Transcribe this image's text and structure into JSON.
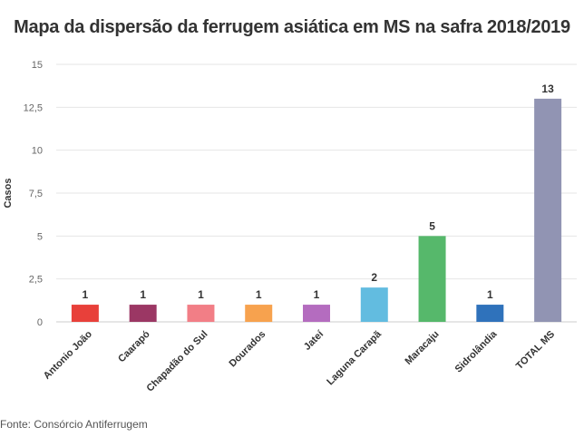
{
  "chart_data": {
    "type": "bar",
    "title": "Mapa da dispersão da ferrugem asiática em MS na safra 2018/2019",
    "ylabel": "Casos",
    "xlabel": "",
    "ylim": [
      0,
      15
    ],
    "yticks": [
      0,
      2.5,
      5,
      7.5,
      10,
      12.5,
      15
    ],
    "ytick_labels": [
      "0",
      "2,5",
      "5",
      "7,5",
      "10",
      "12,5",
      "15"
    ],
    "grid": true,
    "legend": "none",
    "categories": [
      "Antonio João",
      "Caarapó",
      "Chapadão do Sul",
      "Dourados",
      "Jateí",
      "Laguna Carapã",
      "Maracaju",
      "Sidrolândia",
      "TOTAL MS"
    ],
    "values": [
      1,
      1,
      1,
      1,
      1,
      2,
      5,
      1,
      13
    ],
    "colors": [
      "#e8403a",
      "#9b3764",
      "#f27e86",
      "#f7a24e",
      "#b46cbf",
      "#62bce0",
      "#56b86b",
      "#2f72bb",
      "#9194b3"
    ]
  },
  "source": "Fonte: Consórcio Antiferrugem"
}
